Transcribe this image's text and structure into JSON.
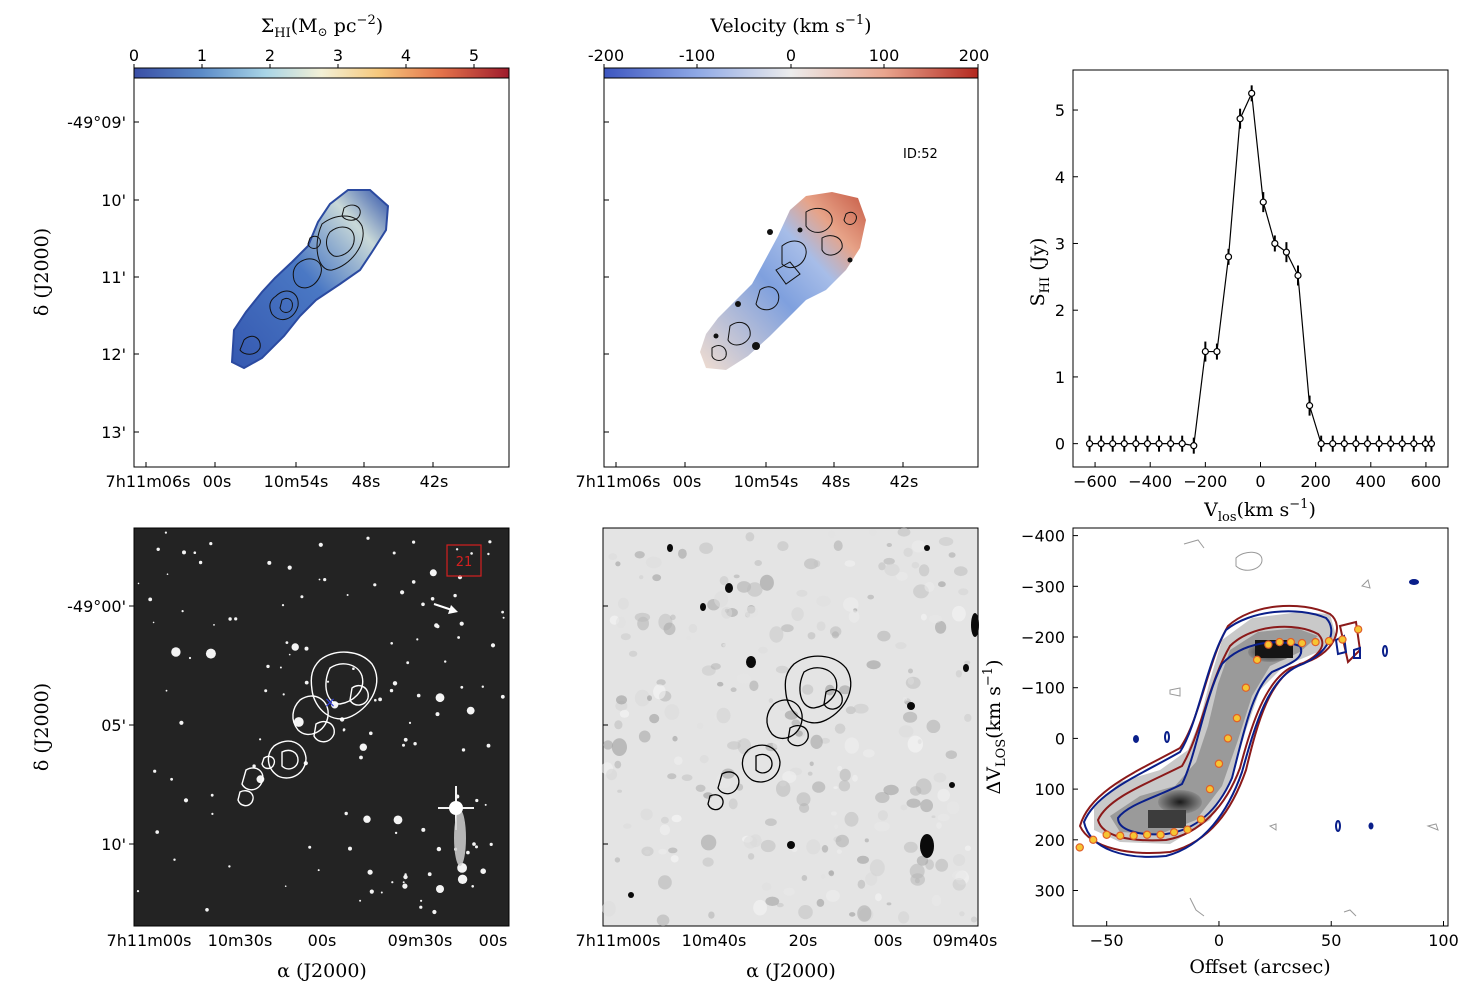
{
  "panels": {
    "hi_map": {
      "colorbar_label": "Σ",
      "colorbar_label_sub": "HI",
      "colorbar_label_rest": "(M",
      "colorbar_label_unit": " pc",
      "colorbar_label_exp": "−2",
      "colorbar_ticks": [
        "0",
        "1",
        "2",
        "3",
        "4",
        "5"
      ],
      "ylabel": "δ (J2000)",
      "yticks": [
        "-49°09'",
        "10'",
        "11'",
        "12'",
        "13'"
      ],
      "xticks": [
        "7h11m06s",
        "00s",
        "10m54s",
        "48s",
        "42s"
      ]
    },
    "velocity_map": {
      "colorbar_label": "Velocity (km s",
      "colorbar_label_exp": "−1",
      "colorbar_ticks": [
        "-200",
        "-100",
        "0",
        "100",
        "200"
      ],
      "annotation": "ID:52",
      "xticks": [
        "7h11m06s",
        "00s",
        "10m54s",
        "48s",
        "42s"
      ]
    },
    "optical": {
      "ylabel": "δ (J2000)",
      "yticks": [
        "-49°00'",
        "05'",
        "10'"
      ],
      "xticks": [
        "7h11m00s",
        "10m30s",
        "00s",
        "09m30s",
        "00s"
      ],
      "xlabel": "α (J2000)",
      "box_label": "21"
    },
    "radio_continuum": {
      "xticks": [
        "7h11m00s",
        "10m40s",
        "20s",
        "00s",
        "09m40s"
      ],
      "xlabel": "α (J2000)"
    }
  },
  "chart_data": [
    {
      "type": "line",
      "panel": "spectrum",
      "xlabel": "V",
      "xlabel_sub": "los",
      "xlabel_unit": "(km s",
      "xlabel_exp": "−1",
      "ylabel": "S",
      "ylabel_sub": "HI",
      "ylabel_unit": " (Jy)",
      "xlim": [
        -680,
        680
      ],
      "ylim": [
        -0.35,
        5.6
      ],
      "xticks": [
        -600,
        -400,
        -200,
        0,
        200,
        400,
        600
      ],
      "xtick_labels": [
        "−600",
        "−400",
        "−200",
        "0",
        "200",
        "400",
        "600"
      ],
      "yticks": [
        0,
        1,
        2,
        3,
        4,
        5
      ],
      "x": [
        -620,
        -578,
        -536,
        -494,
        -452,
        -410,
        -368,
        -326,
        -284,
        -242,
        -200,
        -158,
        -116,
        -74,
        -32,
        10,
        52,
        94,
        136,
        178,
        220,
        262,
        304,
        346,
        388,
        430,
        472,
        514,
        556,
        598,
        620
      ],
      "y": [
        0,
        0,
        0,
        0,
        0,
        0,
        0,
        0,
        0,
        -0.03,
        1.38,
        1.38,
        2.8,
        4.87,
        5.25,
        3.62,
        3.0,
        2.87,
        2.52,
        0.57,
        0,
        0,
        0,
        0,
        0,
        0,
        0,
        0,
        0,
        0,
        0
      ],
      "yerr": [
        0.12,
        0.12,
        0.12,
        0.12,
        0.12,
        0.12,
        0.12,
        0.12,
        0.12,
        0.12,
        0.15,
        0.12,
        0.12,
        0.15,
        0.12,
        0.15,
        0.12,
        0.15,
        0.15,
        0.15,
        0.12,
        0.12,
        0.12,
        0.12,
        0.12,
        0.12,
        0.12,
        0.12,
        0.12,
        0.12,
        0.12
      ]
    },
    {
      "type": "heatmap",
      "panel": "position-velocity",
      "xlabel": "Offset (arcsec)",
      "ylabel": "ΔV",
      "ylabel_sub": "LOS",
      "ylabel_unit": "(km s",
      "ylabel_exp": "−1",
      "xlim": [
        -65,
        102
      ],
      "ylim": [
        370,
        -415
      ],
      "xticks": [
        -50,
        0,
        50,
        100
      ],
      "xtick_labels": [
        "−50",
        "0",
        "50",
        "100"
      ],
      "yticks": [
        -400,
        -300,
        -200,
        -100,
        0,
        100,
        200,
        300
      ],
      "ytick_labels": [
        "−400",
        "−300",
        "−200",
        "−100",
        "0",
        "100",
        "200",
        "300"
      ],
      "rotation_curve_x": [
        -62,
        -56,
        -50,
        -44,
        -38,
        -32,
        -26,
        -20,
        -14,
        -8,
        -4,
        0,
        4,
        8,
        12,
        17,
        22,
        27,
        32,
        37,
        43,
        49,
        55,
        62
      ],
      "rotation_curve_y": [
        215,
        200,
        190,
        192,
        192,
        190,
        190,
        185,
        180,
        160,
        100,
        50,
        0,
        -40,
        -100,
        -155,
        -185,
        -190,
        -190,
        -188,
        -190,
        -192,
        -195,
        -215
      ]
    }
  ]
}
